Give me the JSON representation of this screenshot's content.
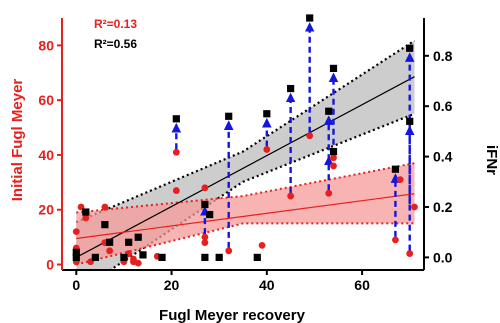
{
  "chart_data": {
    "type": "scatter",
    "xlabel": "Fugl Meyer recovery",
    "ylabel_left": "Initial Fugl Meyer",
    "ylabel_right": "iFNr",
    "xlim": [
      -3,
      73
    ],
    "ylim_left": [
      -2,
      90
    ],
    "ylim_right": [
      -0.05,
      0.95
    ],
    "x_ticks": [
      0,
      20,
      40,
      60
    ],
    "y_ticks_left": [
      0,
      20,
      40,
      60,
      80
    ],
    "y_ticks_right": [
      0.0,
      0.2,
      0.4,
      0.6,
      0.8
    ],
    "y_tick_labels_right": [
      "0.0",
      "0.2",
      "0.4",
      "0.6",
      "0.8"
    ],
    "colors": {
      "initial_fm": "#e8201d",
      "ifnr": "#000000",
      "arrow": "#1515e0",
      "ci_initial": "#f59a9a",
      "ci_ifnr": "#c8c8c8",
      "axis_left": "#e8201d"
    },
    "annotations": [
      {
        "text": "R²=0.13",
        "color": "#e8201d"
      },
      {
        "text": "R²=0.56",
        "color": "#000000"
      }
    ],
    "series": [
      {
        "key": "initial_fm",
        "axis": "left",
        "marker": "circle",
        "points": [
          [
            0,
            12
          ],
          [
            0,
            6
          ],
          [
            0,
            1
          ],
          [
            1,
            21
          ],
          [
            2,
            17
          ],
          [
            3,
            1
          ],
          [
            6,
            21
          ],
          [
            6,
            8
          ],
          [
            7,
            5
          ],
          [
            10,
            1
          ],
          [
            11,
            4
          ],
          [
            12,
            2
          ],
          [
            12,
            1
          ],
          [
            13,
            0.5
          ],
          [
            17,
            3
          ],
          [
            21,
            41
          ],
          [
            21,
            27
          ],
          [
            27,
            28
          ],
          [
            27,
            10
          ],
          [
            27,
            8
          ],
          [
            32,
            5
          ],
          [
            39,
            7
          ],
          [
            40,
            42
          ],
          [
            45,
            25
          ],
          [
            49,
            47
          ],
          [
            53,
            26
          ],
          [
            54,
            39
          ],
          [
            54,
            36
          ],
          [
            67,
            9
          ],
          [
            68,
            31
          ],
          [
            70,
            4
          ],
          [
            71,
            21
          ]
        ]
      },
      {
        "key": "ifnr",
        "axis": "right",
        "marker": "square",
        "points": [
          [
            0,
            0.02
          ],
          [
            0,
            0.0
          ],
          [
            2,
            0.18
          ],
          [
            4,
            0.0
          ],
          [
            6,
            0.13
          ],
          [
            7,
            0.06
          ],
          [
            10,
            0.0
          ],
          [
            11,
            0.06
          ],
          [
            13,
            0.08
          ],
          [
            14,
            0.01
          ],
          [
            18,
            0.0
          ],
          [
            21,
            0.55
          ],
          [
            27,
            0.21
          ],
          [
            28,
            0.17
          ],
          [
            27,
            0.0
          ],
          [
            30,
            0.0
          ],
          [
            32,
            0.56
          ],
          [
            38,
            0.0
          ],
          [
            40,
            0.57
          ],
          [
            45,
            0.67
          ],
          [
            49,
            0.95
          ],
          [
            53,
            0.58
          ],
          [
            54,
            0.42
          ],
          [
            54,
            0.75
          ],
          [
            67,
            0.35
          ],
          [
            70,
            0.83
          ],
          [
            70,
            0.54
          ]
        ]
      }
    ],
    "arrows": [
      [
        21,
        41,
        0.55
      ],
      [
        27,
        10,
        0.22
      ],
      [
        32,
        5,
        0.56
      ],
      [
        40,
        42,
        0.57
      ],
      [
        45,
        25,
        0.67
      ],
      [
        49,
        47,
        0.95
      ],
      [
        53,
        26,
        0.58
      ],
      [
        54,
        39,
        0.75
      ],
      [
        53,
        36,
        0.42
      ],
      [
        67,
        9,
        0.35
      ],
      [
        70,
        4,
        0.83
      ],
      [
        70,
        21,
        0.54
      ]
    ],
    "fit_initial": {
      "slope": 0.23,
      "intercept": 9.5,
      "ci_upper": [
        [
          0,
          19
        ],
        [
          35,
          25
        ],
        [
          71,
          37
        ]
      ],
      "ci_lower": [
        [
          0,
          0
        ],
        [
          35,
          15
        ],
        [
          71,
          15
        ]
      ]
    },
    "fit_ifnr": {
      "slope": 0.0101,
      "intercept": 0.0,
      "ci_upper": [
        [
          0,
          0.14
        ],
        [
          35,
          0.42
        ],
        [
          71,
          0.86
        ]
      ],
      "ci_lower": [
        [
          0,
          -0.14
        ],
        [
          35,
          0.3
        ],
        [
          71,
          0.57
        ]
      ]
    }
  }
}
